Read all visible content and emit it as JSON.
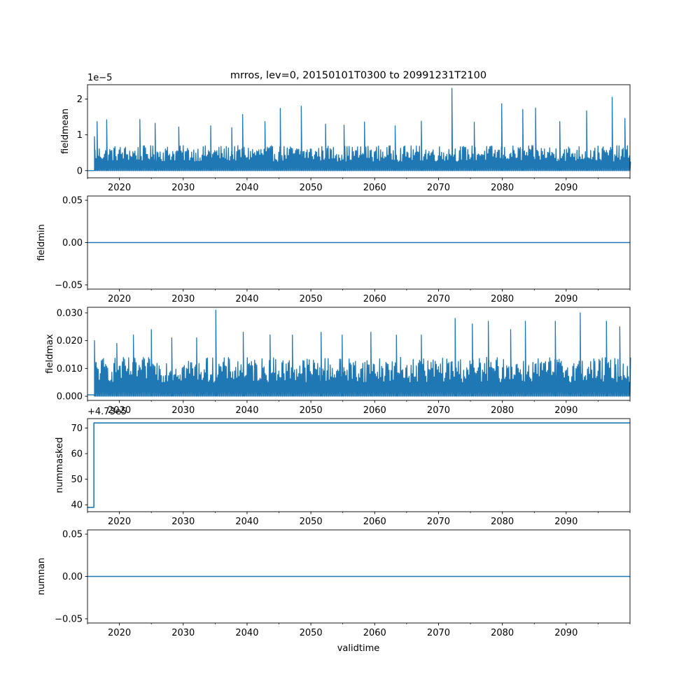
{
  "figure": {
    "title": "mrros, lev=0, 20150101T0300 to 20991231T2100",
    "xlabel": "validtime",
    "line_color": "#1f77b4"
  },
  "chart_data": [
    {
      "type": "line",
      "name": "fieldmean",
      "ylabel": "fieldmean",
      "xlim": [
        2015.0,
        2100.0
      ],
      "ylim": [
        -0.2,
        2.4
      ],
      "yticks": [
        0,
        1,
        2
      ],
      "ytick_labels": [
        "0",
        "1",
        "2"
      ],
      "offset_label": "1e−5",
      "xticks": [
        2020,
        2030,
        2040,
        2050,
        2060,
        2070,
        2080,
        2090
      ],
      "xtick_labels": [
        "2020",
        "2030",
        "2040",
        "2050",
        "2060",
        "2070",
        "2080",
        "2090"
      ],
      "style": "noisy",
      "description_values": {
        "early_flat_level": 0.0,
        "early_segment_end": 2016.0,
        "typical_envelope": 0.7,
        "peaks": [
          {
            "x": 2016.1,
            "y": 0.95
          },
          {
            "x": 2016.5,
            "y": 1.37
          },
          {
            "x": 2018.0,
            "y": 1.42
          },
          {
            "x": 2023.2,
            "y": 1.43
          },
          {
            "x": 2025.6,
            "y": 1.32
          },
          {
            "x": 2029.3,
            "y": 1.22
          },
          {
            "x": 2034.3,
            "y": 1.25
          },
          {
            "x": 2037.6,
            "y": 1.2
          },
          {
            "x": 2039.3,
            "y": 1.57
          },
          {
            "x": 2042.8,
            "y": 1.37
          },
          {
            "x": 2045.2,
            "y": 1.74
          },
          {
            "x": 2048.5,
            "y": 1.8
          },
          {
            "x": 2052.3,
            "y": 1.3
          },
          {
            "x": 2055.2,
            "y": 1.27
          },
          {
            "x": 2058.4,
            "y": 1.36
          },
          {
            "x": 2063.2,
            "y": 1.25
          },
          {
            "x": 2067.3,
            "y": 1.38
          },
          {
            "x": 2072.1,
            "y": 2.3
          },
          {
            "x": 2075.6,
            "y": 1.35
          },
          {
            "x": 2079.9,
            "y": 1.87
          },
          {
            "x": 2083.2,
            "y": 1.71
          },
          {
            "x": 2085.2,
            "y": 1.75
          },
          {
            "x": 2089.0,
            "y": 1.37
          },
          {
            "x": 2093.2,
            "y": 1.67
          },
          {
            "x": 2097.2,
            "y": 2.05
          },
          {
            "x": 2099.2,
            "y": 1.46
          }
        ]
      }
    },
    {
      "type": "line",
      "name": "fieldmin",
      "ylabel": "fieldmin",
      "xlim": [
        2015.0,
        2100.0
      ],
      "ylim": [
        -0.055,
        0.055
      ],
      "yticks": [
        -0.05,
        0.0,
        0.05
      ],
      "ytick_labels": [
        "−0.05",
        "0.00",
        "0.05"
      ],
      "xticks": [
        2020,
        2030,
        2040,
        2050,
        2060,
        2070,
        2080,
        2090
      ],
      "xtick_labels": [
        "2020",
        "2030",
        "2040",
        "2050",
        "2060",
        "2070",
        "2080",
        "2090"
      ],
      "style": "constant",
      "constant_value": 0.0
    },
    {
      "type": "line",
      "name": "fieldmax",
      "ylabel": "fieldmax",
      "xlim": [
        2015.0,
        2100.0
      ],
      "ylim": [
        -0.0015,
        0.032
      ],
      "yticks": [
        0.0,
        0.01,
        0.02,
        0.03
      ],
      "ytick_labels": [
        "0.000",
        "0.010",
        "0.020",
        "0.030"
      ],
      "xticks": [
        2020,
        2030,
        2040,
        2050,
        2060,
        2070,
        2080,
        2090
      ],
      "xtick_labels": [
        "2020",
        "2030",
        "2040",
        "2050",
        "2060",
        "2070",
        "2080",
        "2090"
      ],
      "style": "noisy",
      "description_values": {
        "early_flat_level": 0.0005,
        "early_segment_end": 2016.0,
        "typical_envelope": 0.014,
        "peaks": [
          {
            "x": 2016.1,
            "y": 0.02
          },
          {
            "x": 2019.6,
            "y": 0.019
          },
          {
            "x": 2022.2,
            "y": 0.022
          },
          {
            "x": 2025.0,
            "y": 0.024
          },
          {
            "x": 2028.2,
            "y": 0.021
          },
          {
            "x": 2032.1,
            "y": 0.021
          },
          {
            "x": 2035.1,
            "y": 0.031
          },
          {
            "x": 2039.4,
            "y": 0.023
          },
          {
            "x": 2043.6,
            "y": 0.022
          },
          {
            "x": 2047.1,
            "y": 0.022
          },
          {
            "x": 2051.6,
            "y": 0.023
          },
          {
            "x": 2054.9,
            "y": 0.022
          },
          {
            "x": 2059.4,
            "y": 0.023
          },
          {
            "x": 2063.4,
            "y": 0.022
          },
          {
            "x": 2067.3,
            "y": 0.022
          },
          {
            "x": 2072.6,
            "y": 0.028
          },
          {
            "x": 2075.3,
            "y": 0.026
          },
          {
            "x": 2077.8,
            "y": 0.027
          },
          {
            "x": 2081.3,
            "y": 0.024
          },
          {
            "x": 2083.6,
            "y": 0.027
          },
          {
            "x": 2088.3,
            "y": 0.027
          },
          {
            "x": 2092.2,
            "y": 0.03
          },
          {
            "x": 2096.3,
            "y": 0.027
          },
          {
            "x": 2098.4,
            "y": 0.025
          }
        ]
      }
    },
    {
      "type": "line",
      "name": "nummasked",
      "ylabel": "nummasked",
      "xlim": [
        2015.0,
        2100.0
      ],
      "ylim": [
        37.3,
        73.7
      ],
      "yticks": [
        40,
        50,
        60,
        70
      ],
      "ytick_labels": [
        "40",
        "50",
        "60",
        "70"
      ],
      "offset_label": "+4.73e5",
      "xticks": [
        2020,
        2030,
        2040,
        2050,
        2060,
        2070,
        2080,
        2090
      ],
      "xtick_labels": [
        "2020",
        "2030",
        "2040",
        "2050",
        "2060",
        "2070",
        "2080",
        "2090"
      ],
      "style": "step",
      "step": {
        "before": 39,
        "after": 72,
        "step_x": 2016.0
      }
    },
    {
      "type": "line",
      "name": "numnan",
      "ylabel": "numnan",
      "xlim": [
        2015.0,
        2100.0
      ],
      "ylim": [
        -0.055,
        0.055
      ],
      "yticks": [
        -0.05,
        0.0,
        0.05
      ],
      "ytick_labels": [
        "−0.05",
        "0.00",
        "0.05"
      ],
      "xticks": [
        2020,
        2030,
        2040,
        2050,
        2060,
        2070,
        2080,
        2090
      ],
      "xtick_labels": [
        "2020",
        "2030",
        "2040",
        "2050",
        "2060",
        "2070",
        "2080",
        "2090"
      ],
      "style": "constant",
      "constant_value": 0.0
    }
  ]
}
